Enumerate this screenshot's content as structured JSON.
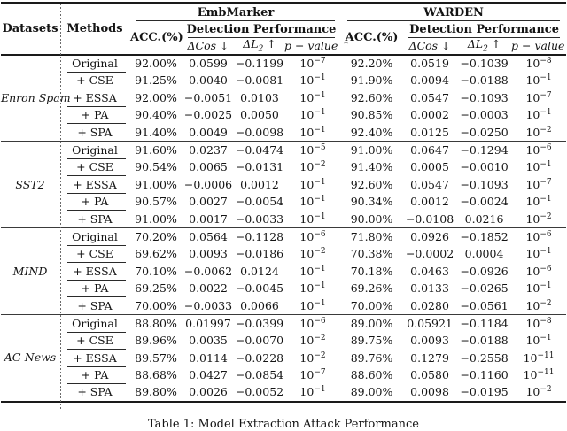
{
  "header": {
    "datasets": "Datasets",
    "methods": "Methods",
    "embmarker": "EmbMarker",
    "warden": "WARDEN",
    "acc": "ACC.(%)",
    "detection": "Detection Performance",
    "delta_cos": "ΔCos ↓",
    "delta_l2": {
      "base": "ΔL",
      "sub": "2",
      "arrow": " ↑"
    },
    "p_value": "p − value ↑"
  },
  "groups": [
    {
      "dataset": "Enron Spam",
      "rows": [
        {
          "method": "Original",
          "values": [
            "92.00%",
            "0.0599",
            "−0.1199",
            "10^−7",
            "92.20%",
            "0.0519",
            "−0.1039",
            "10^−8"
          ]
        },
        {
          "method": "+ CSE",
          "values": [
            "91.25%",
            "0.0040",
            "−0.0081",
            "10^−1",
            "91.90%",
            "0.0094",
            "−0.0188",
            "10^−1"
          ]
        },
        {
          "method": "+ ESSA",
          "values": [
            "92.00%",
            "−0.0051",
            "0.0103",
            "10^−1",
            "92.60%",
            "0.0547",
            "−0.1093",
            "10^−7"
          ]
        },
        {
          "method": "+ PA",
          "values": [
            "90.40%",
            "−0.0025",
            "0.0050",
            "10^−1",
            "90.85%",
            "0.0002",
            "−0.0003",
            "10^−1"
          ]
        },
        {
          "method": "+ SPA",
          "values": [
            "91.40%",
            "0.0049",
            "−0.0098",
            "10^−1",
            "92.40%",
            "0.0125",
            "−0.0250",
            "10^−2"
          ]
        }
      ]
    },
    {
      "dataset": "SST2",
      "rows": [
        {
          "method": "Original",
          "values": [
            "91.60%",
            "0.0237",
            "−0.0474",
            "10^−5",
            "91.00%",
            "0.0647",
            "−0.1294",
            "10^−6"
          ]
        },
        {
          "method": "+ CSE",
          "values": [
            "90.54%",
            "0.0065",
            "−0.0131",
            "10^−2",
            "91.40%",
            "0.0005",
            "−0.0010",
            "10^−1"
          ]
        },
        {
          "method": "+ ESSA",
          "values": [
            "91.00%",
            "−0.0006",
            "0.0012",
            "10^−1",
            "92.60%",
            "0.0547",
            "−0.1093",
            "10^−7"
          ]
        },
        {
          "method": "+ PA",
          "values": [
            "90.57%",
            "0.0027",
            "−0.0054",
            "10^−1",
            "90.34%",
            "0.0012",
            "−0.0024",
            "10^−1"
          ]
        },
        {
          "method": "+ SPA",
          "values": [
            "91.00%",
            "0.0017",
            "−0.0033",
            "10^−1",
            "90.00%",
            "−0.0108",
            "0.0216",
            "10^−2"
          ]
        }
      ]
    },
    {
      "dataset": "MIND",
      "rows": [
        {
          "method": "Original",
          "values": [
            "70.20%",
            "0.0564",
            "−0.1128",
            "10^−6",
            "71.80%",
            "0.0926",
            "−0.1852",
            "10^−6"
          ]
        },
        {
          "method": "+ CSE",
          "values": [
            "69.62%",
            "0.0093",
            "−0.0186",
            "10^−2",
            "70.38%",
            "−0.0002",
            "0.0004",
            "10^−1"
          ]
        },
        {
          "method": "+ ESSA",
          "values": [
            "70.10%",
            "−0.0062",
            "0.0124",
            "10^−1",
            "70.18%",
            "0.0463",
            "−0.0926",
            "10^−6"
          ]
        },
        {
          "method": "+ PA",
          "values": [
            "69.25%",
            "0.0022",
            "−0.0045",
            "10^−1",
            "69.26%",
            "0.0133",
            "−0.0265",
            "10^−1"
          ]
        },
        {
          "method": "+ SPA",
          "values": [
            "70.00%",
            "−0.0033",
            "0.0066",
            "10^−1",
            "70.00%",
            "0.0280",
            "−0.0561",
            "10^−2"
          ]
        }
      ]
    },
    {
      "dataset": "AG News",
      "rows": [
        {
          "method": "Original",
          "values": [
            "88.80%",
            "0.01997",
            "−0.0399",
            "10^−6",
            "89.00%",
            "0.05921",
            "−0.1184",
            "10^−8"
          ]
        },
        {
          "method": "+ CSE",
          "values": [
            "89.96%",
            "0.0035",
            "−0.0070",
            "10^−2",
            "89.75%",
            "0.0093",
            "−0.0188",
            "10^−1"
          ]
        },
        {
          "method": "+ ESSA",
          "values": [
            "89.57%",
            "0.0114",
            "−0.0228",
            "10^−2",
            "89.76%",
            "0.1279",
            "−0.2558",
            "10^−11"
          ]
        },
        {
          "method": "+ PA",
          "values": [
            "88.68%",
            "0.0427",
            "−0.0854",
            "10^−7",
            "88.60%",
            "0.0580",
            "−0.1160",
            "10^−11"
          ]
        },
        {
          "method": "+ SPA",
          "values": [
            "89.80%",
            "0.0026",
            "−0.0052",
            "10^−1",
            "89.00%",
            "0.0098",
            "−0.0195",
            "10^−2"
          ]
        }
      ]
    }
  ],
  "caption": "Table 1: Model Extraction Attack Performance"
}
